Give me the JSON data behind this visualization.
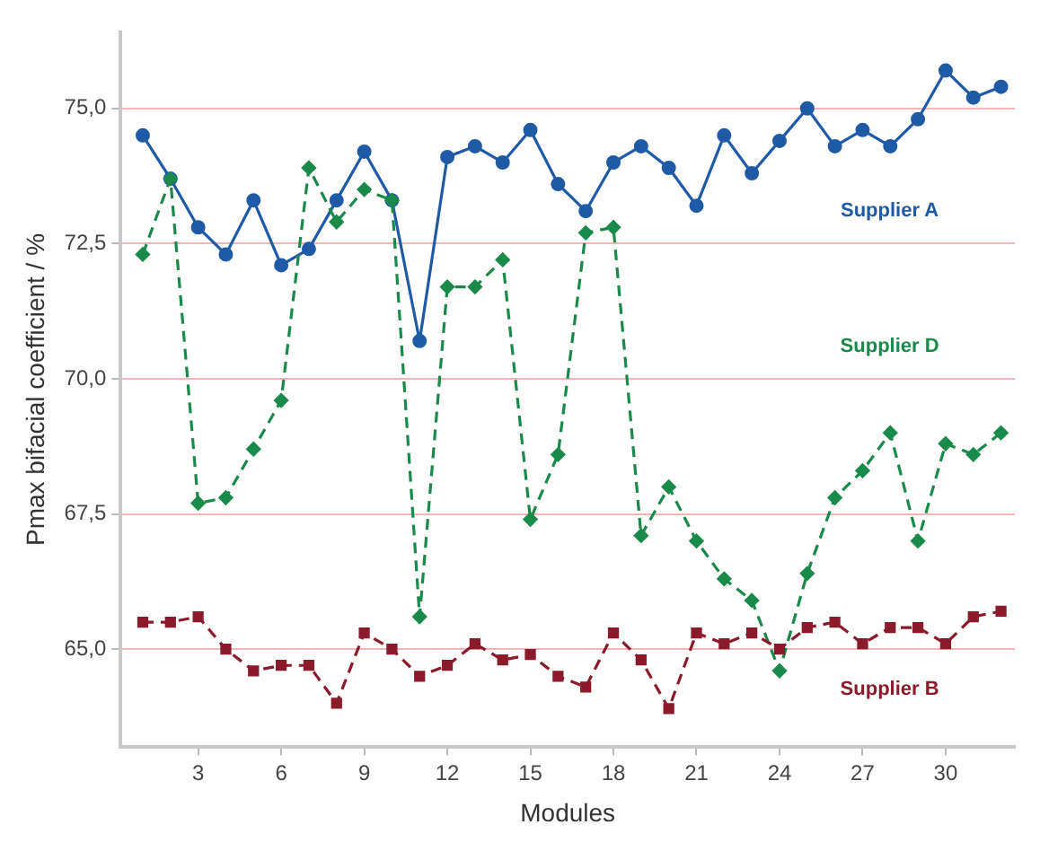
{
  "chart_data": {
    "type": "line",
    "xlabel": "Modules",
    "ylabel": "Pmax bifacial coefficient / %",
    "x": [
      1,
      2,
      3,
      4,
      5,
      6,
      7,
      8,
      9,
      10,
      11,
      12,
      13,
      14,
      15,
      16,
      17,
      18,
      19,
      20,
      21,
      22,
      23,
      24,
      25,
      26,
      27,
      28,
      29,
      30,
      31,
      32
    ],
    "xlim": [
      0.2,
      32.5
    ],
    "xticks": [
      3,
      6,
      9,
      12,
      15,
      18,
      21,
      24,
      27,
      30
    ],
    "ylim": [
      63.2,
      76.4
    ],
    "yticks": [
      {
        "value": 65,
        "label": "65,0"
      },
      {
        "value": 67.5,
        "label": "67,5"
      },
      {
        "value": 70,
        "label": "70,0"
      },
      {
        "value": 72.5,
        "label": "72,5"
      },
      {
        "value": 75,
        "label": "75,0"
      }
    ],
    "grid": "y",
    "legend": false,
    "series": [
      {
        "name": "Supplier A",
        "color": "#1f5aa6",
        "marker": "circle",
        "line_style": "solid",
        "values": [
          74.5,
          73.7,
          72.8,
          72.3,
          73.3,
          72.1,
          72.4,
          73.3,
          74.2,
          73.3,
          70.7,
          74.1,
          74.3,
          74.0,
          74.6,
          73.6,
          73.1,
          74.0,
          74.3,
          73.9,
          73.2,
          74.5,
          73.8,
          74.4,
          75.0,
          74.3,
          74.6,
          74.3,
          74.8,
          75.7,
          75.2,
          75.4
        ]
      },
      {
        "name": "Supplier D",
        "color": "#1a8a4a",
        "marker": "diamond",
        "line_style": "dashed",
        "values": [
          72.3,
          73.7,
          67.7,
          67.8,
          68.7,
          69.6,
          73.9,
          72.9,
          73.5,
          73.3,
          65.6,
          71.7,
          71.7,
          72.2,
          67.4,
          68.6,
          72.7,
          72.8,
          67.1,
          68.0,
          67.0,
          66.3,
          65.9,
          64.6,
          66.4,
          67.8,
          68.3,
          69.0,
          67.0,
          68.8,
          68.6,
          69.0
        ]
      },
      {
        "name": "Supplier B",
        "color": "#8b1a2a",
        "marker": "square",
        "line_style": "dashed",
        "values": [
          65.5,
          65.5,
          65.6,
          65.0,
          64.6,
          64.7,
          64.7,
          64.0,
          65.3,
          65.0,
          64.5,
          64.7,
          65.1,
          64.8,
          64.9,
          64.5,
          64.3,
          65.3,
          64.8,
          63.9,
          65.3,
          65.1,
          65.3,
          65.0,
          65.4,
          65.5,
          65.1,
          65.4,
          65.4,
          65.1,
          65.6,
          65.7
        ]
      }
    ]
  }
}
